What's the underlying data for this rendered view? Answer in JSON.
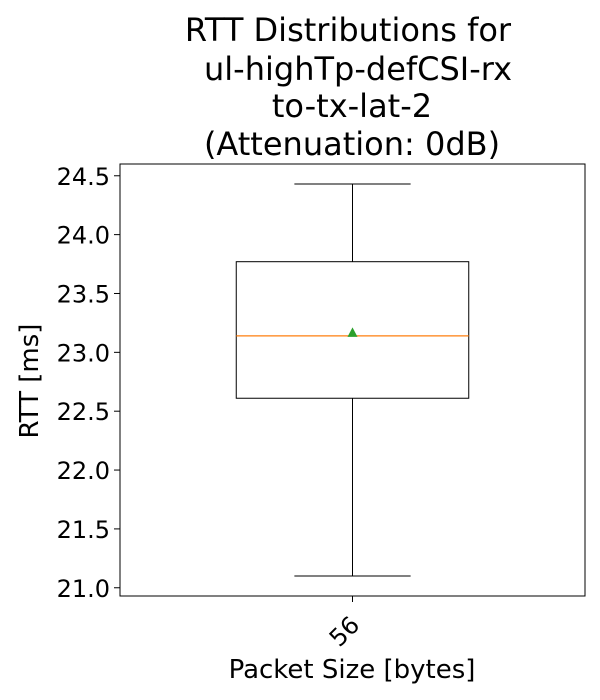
{
  "chart_data": {
    "type": "box",
    "title_lines": [
      "RTT Distributions for",
      "ul-highTp-defCSI-rx",
      "to-tx-lat-2",
      "(Attenuation: 0dB)"
    ],
    "xlabel": "Packet Size [bytes]",
    "ylabel": "RTT [ms]",
    "categories": [
      "56"
    ],
    "ylim": [
      20.93,
      24.6
    ],
    "yticks": [
      "21.0",
      "21.5",
      "22.0",
      "22.5",
      "23.0",
      "23.5",
      "24.0",
      "24.5"
    ],
    "boxes": [
      {
        "category": "56",
        "whisker_low": 21.1,
        "q1": 22.61,
        "median": 23.14,
        "q3": 23.77,
        "whisker_high": 24.43,
        "mean": 23.17
      }
    ],
    "colors": {
      "box": "#000000",
      "median": "#ff7f0e",
      "mean": "#2ca02c"
    },
    "grid": false,
    "legend": "none"
  }
}
